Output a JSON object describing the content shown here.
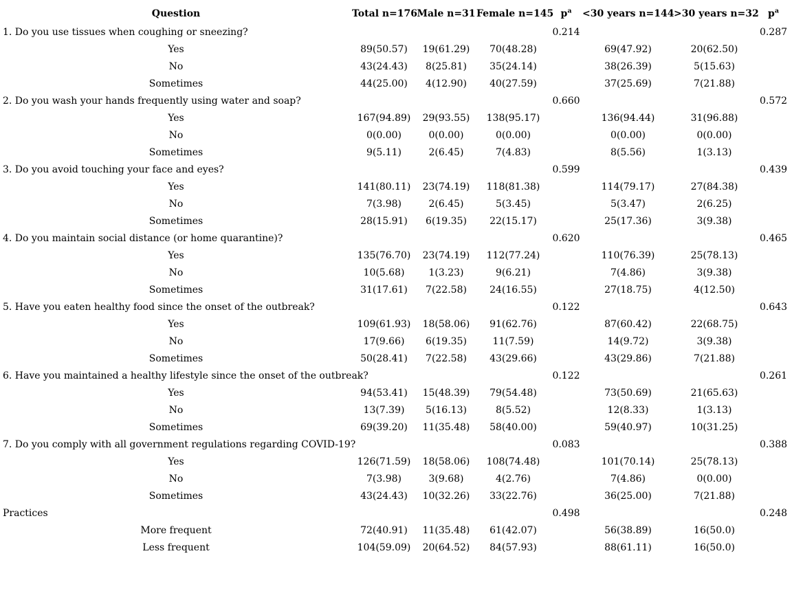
{
  "page": {
    "background_color": "#ffffff",
    "text_color": "#000000"
  },
  "table": {
    "headers": [
      {
        "label": "Question"
      },
      {
        "label": "Total n=176"
      },
      {
        "label": "Male n=31"
      },
      {
        "label": "Female n=145"
      },
      {
        "label": "p",
        "sup": "a"
      },
      {
        "label": "<30 years n=144"
      },
      {
        "label": ">30 years n=32"
      },
      {
        "label": "p",
        "sup": "a"
      }
    ],
    "sections": [
      {
        "question": "1. Do you use tissues when coughing or sneezing?",
        "p_gender": "0.214",
        "p_age": "0.287",
        "answers": [
          {
            "label": "Yes",
            "values": [
              "89(50.57)",
              "19(61.29)",
              "70(48.28)",
              "69(47.92)",
              "20(62.50)"
            ]
          },
          {
            "label": "No",
            "values": [
              "43(24.43)",
              "8(25.81)",
              "35(24.14)",
              "38(26.39)",
              "5(15.63)"
            ]
          },
          {
            "label": "Sometimes",
            "values": [
              "44(25.00)",
              "4(12.90)",
              "40(27.59)",
              "37(25.69)",
              "7(21.88)"
            ]
          }
        ]
      },
      {
        "question": "2. Do you wash your hands frequently using water and soap?",
        "p_gender": "0.660",
        "p_age": "0.572",
        "answers": [
          {
            "label": "Yes",
            "values": [
              "167(94.89)",
              "29(93.55)",
              "138(95.17)",
              "136(94.44)",
              "31(96.88)"
            ]
          },
          {
            "label": "No",
            "values": [
              "0(0.00)",
              "0(0.00)",
              "0(0.00)",
              "0(0.00)",
              "0(0.00)"
            ]
          },
          {
            "label": "Sometimes",
            "values": [
              "9(5.11)",
              "2(6.45)",
              "7(4.83)",
              "8(5.56)",
              "1(3.13)"
            ]
          }
        ]
      },
      {
        "question": "3. Do you avoid touching your face and eyes?",
        "p_gender": "0.599",
        "p_age": "0.439",
        "answers": [
          {
            "label": "Yes",
            "values": [
              "141(80.11)",
              "23(74.19)",
              "118(81.38)",
              "114(79.17)",
              "27(84.38)"
            ]
          },
          {
            "label": "No",
            "values": [
              "7(3.98)",
              "2(6.45)",
              "5(3.45)",
              "5(3.47)",
              "2(6.25)"
            ]
          },
          {
            "label": "Sometimes",
            "values": [
              "28(15.91)",
              "6(19.35)",
              "22(15.17)",
              "25(17.36)",
              "3(9.38)"
            ]
          }
        ]
      },
      {
        "question": "4. Do you maintain social distance (or home quarantine)?",
        "p_gender": "0.620",
        "p_age": "0.465",
        "answers": [
          {
            "label": "Yes",
            "values": [
              "135(76.70)",
              "23(74.19)",
              "112(77.24)",
              "110(76.39)",
              "25(78.13)"
            ]
          },
          {
            "label": "No",
            "values": [
              "10(5.68)",
              "1(3.23)",
              "9(6.21)",
              "7(4.86)",
              "3(9.38)"
            ]
          },
          {
            "label": "Sometimes",
            "values": [
              "31(17.61)",
              "7(22.58)",
              "24(16.55)",
              "27(18.75)",
              "4(12.50)"
            ]
          }
        ]
      },
      {
        "question": "5. Have you eaten healthy food since the onset of the outbreak?",
        "p_gender": "0.122",
        "p_age": "0.643",
        "answers": [
          {
            "label": "Yes",
            "values": [
              "109(61.93)",
              "18(58.06)",
              "91(62.76)",
              "87(60.42)",
              "22(68.75)"
            ]
          },
          {
            "label": "No",
            "values": [
              "17(9.66)",
              "6(19.35)",
              "11(7.59)",
              "14(9.72)",
              "3(9.38)"
            ]
          },
          {
            "label": "Sometimes",
            "values": [
              "50(28.41)",
              "7(22.58)",
              "43(29.66)",
              "43(29.86)",
              "7(21.88)"
            ]
          }
        ]
      },
      {
        "question": "6. Have you maintained a healthy lifestyle since the onset of the outbreak?",
        "p_gender": "0.122",
        "p_age": "0.261",
        "answers": [
          {
            "label": "Yes",
            "values": [
              "94(53.41)",
              "15(48.39)",
              "79(54.48)",
              "73(50.69)",
              "21(65.63)"
            ]
          },
          {
            "label": "No",
            "values": [
              "13(7.39)",
              "5(16.13)",
              "8(5.52)",
              "12(8.33)",
              "1(3.13)"
            ]
          },
          {
            "label": "Sometimes",
            "values": [
              "69(39.20)",
              "11(35.48)",
              "58(40.00)",
              "59(40.97)",
              "10(31.25)"
            ]
          }
        ]
      },
      {
        "question": "7. Do you comply with all government regulations regarding COVID-19?",
        "p_gender": "0.083",
        "p_age": "0.388",
        "answers": [
          {
            "label": "Yes",
            "values": [
              "126(71.59)",
              "18(58.06)",
              "108(74.48)",
              "101(70.14)",
              "25(78.13)"
            ]
          },
          {
            "label": "No",
            "values": [
              "7(3.98)",
              "3(9.68)",
              "4(2.76)",
              "7(4.86)",
              "0(0.00)"
            ]
          },
          {
            "label": "Sometimes",
            "values": [
              "43(24.43)",
              "10(32.26)",
              "33(22.76)",
              "36(25.00)",
              "7(21.88)"
            ]
          }
        ]
      },
      {
        "question": "Practices",
        "p_gender": "0.498",
        "p_age": "0.248",
        "answers": [
          {
            "label": "More frequent",
            "values": [
              "72(40.91)",
              "11(35.48)",
              "61(42.07)",
              "56(38.89)",
              "16(50.0)"
            ]
          },
          {
            "label": "Less frequent",
            "values": [
              "104(59.09)",
              "20(64.52)",
              "84(57.93)",
              "88(61.11)",
              "16(50.0)"
            ]
          }
        ]
      }
    ]
  }
}
